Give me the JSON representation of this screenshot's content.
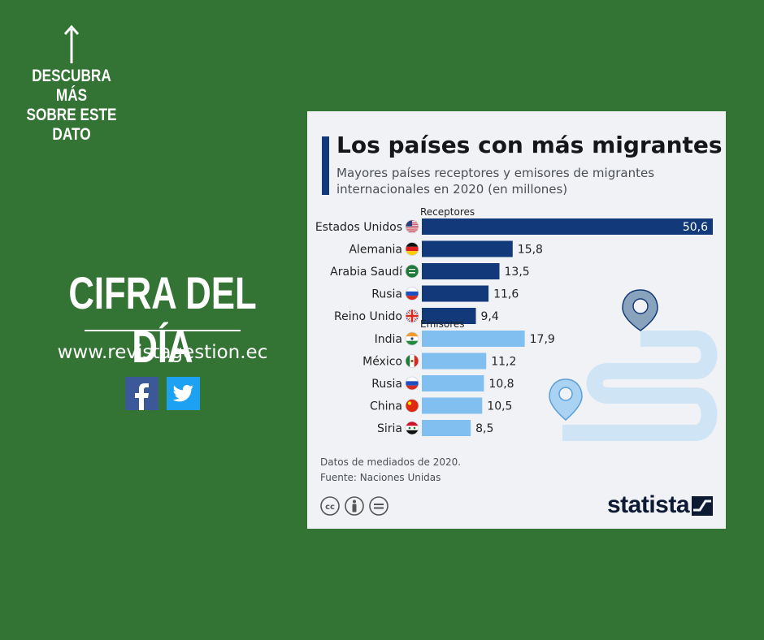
{
  "promo": {
    "cta_line1": "DESCUBRA MÁS",
    "cta_line2": "SOBRE ESTE",
    "cta_line3": "DATO",
    "headline": "CIFRA DEL DÍA",
    "website": "www.revistagestion.ec"
  },
  "social": [
    "facebook-icon",
    "twitter-icon"
  ],
  "colors": {
    "background": "#337333",
    "receptores_bar": "#123a7b",
    "emisores_bar": "#80bff0",
    "card": "#f1f2f5"
  },
  "chart_data": {
    "type": "bar",
    "orientation": "horizontal",
    "title": "Los países con más migrantes",
    "subtitle": "Mayores países receptores y emisores de migrantes internacionales en 2020 (en millones)",
    "xlim": [
      0,
      50.6
    ],
    "groups": [
      {
        "name": "Receptores",
        "color": "#123a7b",
        "items": [
          {
            "label": "Estados Unidos",
            "value": 50.6,
            "value_label": "50,6",
            "flag": "flag-usa"
          },
          {
            "label": "Alemania",
            "value": 15.8,
            "value_label": "15,8",
            "flag": "flag-germany"
          },
          {
            "label": "Arabia Saudí",
            "value": 13.5,
            "value_label": "13,5",
            "flag": "flag-saudi-arabia"
          },
          {
            "label": "Rusia",
            "value": 11.6,
            "value_label": "11,6",
            "flag": "flag-russia"
          },
          {
            "label": "Reino Unido",
            "value": 9.4,
            "value_label": "9,4",
            "flag": "flag-uk"
          }
        ]
      },
      {
        "name": "Emisores",
        "color": "#80bff0",
        "items": [
          {
            "label": "India",
            "value": 17.9,
            "value_label": "17,9",
            "flag": "flag-india"
          },
          {
            "label": "México",
            "value": 11.2,
            "value_label": "11,2",
            "flag": "flag-mexico"
          },
          {
            "label": "Rusia",
            "value": 10.8,
            "value_label": "10,8",
            "flag": "flag-russia"
          },
          {
            "label": "China",
            "value": 10.5,
            "value_label": "10,5",
            "flag": "flag-china"
          },
          {
            "label": "Siria",
            "value": 8.5,
            "value_label": "8,5",
            "flag": "flag-syria"
          }
        ]
      }
    ],
    "notes": [
      "Datos de mediados de 2020.",
      "Fuente: Naciones Unidas"
    ]
  },
  "footer": {
    "license_icons": [
      "cc-icon",
      "by-icon",
      "nd-icon"
    ],
    "brand": "statista"
  }
}
